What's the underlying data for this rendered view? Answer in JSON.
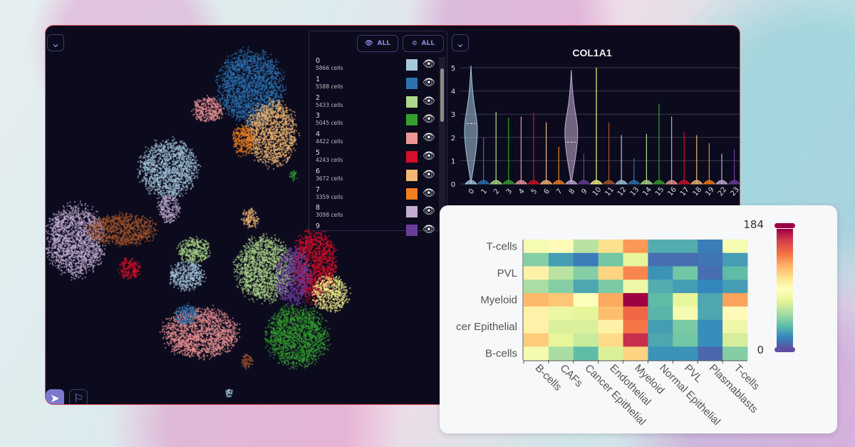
{
  "umap": {
    "collapse_icon": "chevron-down-icon",
    "tools": [
      {
        "name": "navigate",
        "icon": "navigation-arrow-icon",
        "active": true
      },
      {
        "name": "lasso",
        "icon": "lasso-flag-icon",
        "active": false
      }
    ]
  },
  "legend": {
    "show_all_label": "ALL",
    "hide_all_label": "ALL",
    "items": [
      {
        "name": "0",
        "count": "5866 cells",
        "color": "#a6c8dd"
      },
      {
        "name": "1",
        "count": "5588 cells",
        "color": "#2c72b0"
      },
      {
        "name": "2",
        "count": "5433 cells",
        "color": "#aed98a"
      },
      {
        "name": "3",
        "count": "5045 cells",
        "color": "#36a02f"
      },
      {
        "name": "4",
        "count": "4422 cells",
        "color": "#ee9595"
      },
      {
        "name": "5",
        "count": "4243 cells",
        "color": "#d6102a"
      },
      {
        "name": "6",
        "count": "3672 cells",
        "color": "#f0b873"
      },
      {
        "name": "7",
        "count": "3359 cells",
        "color": "#f07f1f"
      },
      {
        "name": "8",
        "count": "3098 cells",
        "color": "#c3aed3"
      },
      {
        "name": "9",
        "count": "",
        "color": "#6a3d9a"
      }
    ]
  },
  "chart_data": [
    {
      "type": "violin",
      "title": "COL1A1",
      "ylim": [
        0,
        5
      ],
      "yticks": [
        "0",
        "1",
        "2",
        "3",
        "4",
        "5"
      ],
      "categories": [
        "0",
        "1",
        "2",
        "3",
        "4",
        "5",
        "6",
        "7",
        "8",
        "9",
        "10",
        "11",
        "12",
        "13",
        "14",
        "15",
        "16",
        "17",
        "18",
        "19",
        "22",
        "23"
      ],
      "max": [
        5.1,
        2.0,
        3.1,
        2.85,
        2.9,
        3.05,
        2.65,
        1.6,
        4.9,
        1.3,
        5.0,
        2.65,
        2.1,
        1.1,
        2.15,
        3.45,
        2.9,
        2.25,
        2.1,
        1.75,
        1.3,
        1.5
      ],
      "median": [
        2.6,
        0,
        0.2,
        0,
        0,
        0,
        0,
        0,
        1.8,
        0,
        0,
        0,
        0,
        0,
        0,
        0,
        0,
        0,
        0,
        0,
        0,
        0
      ],
      "colors": [
        "#a6c8dd",
        "#2c72b0",
        "#aed98a",
        "#36a02f",
        "#ee9595",
        "#d6102a",
        "#f0b873",
        "#f07f1f",
        "#c3aed3",
        "#6a3d9a",
        "#f4f08a",
        "#a6562b",
        "#a6c8dd",
        "#2c72b0",
        "#aed98a",
        "#36a02f",
        "#ee9595",
        "#d6102a",
        "#f0b873",
        "#f07f1f",
        "#c3aed3",
        "#6a3d9a"
      ]
    },
    {
      "type": "heatmap",
      "colorscale": "spectral-reversed",
      "range": [
        0,
        184
      ],
      "colorbar_max_label": "184",
      "colorbar_min_label": "0",
      "x": [
        "B-cells",
        "CAFs",
        "Cancer Epithelial",
        "Endothelial",
        "Myeloid",
        "Normal Epithelial",
        "PVL",
        "Plasmablasts",
        "T-cells"
      ],
      "y_labels_shown": [
        "T-cells",
        "",
        "PVL",
        "",
        "Myeloid",
        "",
        "cer Epithelial",
        "",
        "B-cells"
      ],
      "values": [
        [
          85,
          95,
          60,
          110,
          135,
          30,
          30,
          15,
          85
        ],
        [
          45,
          25,
          15,
          40,
          75,
          10,
          10,
          12,
          25
        ],
        [
          100,
          60,
          45,
          115,
          140,
          22,
          40,
          10,
          35
        ],
        [
          55,
          45,
          28,
          42,
          80,
          30,
          25,
          18,
          25
        ],
        [
          125,
          120,
          90,
          130,
          184,
          35,
          75,
          28,
          132
        ],
        [
          100,
          78,
          75,
          123,
          150,
          33,
          85,
          28,
          95
        ],
        [
          100,
          70,
          70,
          100,
          145,
          25,
          42,
          20,
          80
        ],
        [
          118,
          75,
          65,
          112,
          170,
          28,
          40,
          20,
          68
        ],
        [
          85,
          55,
          35,
          70,
          115,
          22,
          22,
          8,
          45
        ]
      ]
    }
  ]
}
